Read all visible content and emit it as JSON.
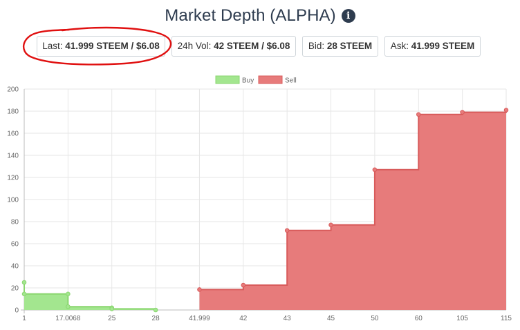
{
  "header": {
    "title": "Market Depth (ALPHA)",
    "info_glyph": "i"
  },
  "stats": {
    "last_label": "Last: ",
    "last_value": "41.999 STEEM / $6.08",
    "vol_label": "24h Vol: ",
    "vol_value": "42 STEEM / $6.08",
    "bid_label": "Bid: ",
    "bid_value": "28 STEEM",
    "ask_label": "Ask: ",
    "ask_value": "41.999 STEEM"
  },
  "annotation": {
    "highlight_color": "#e01010"
  },
  "chart_data": {
    "type": "area",
    "categories": [
      "1",
      "17.0068",
      "25",
      "28",
      "41.999",
      "42",
      "43",
      "45",
      "50",
      "60",
      "105",
      "115"
    ],
    "ylim": [
      0,
      200
    ],
    "yticks": [
      0,
      20,
      40,
      60,
      80,
      100,
      120,
      140,
      160,
      180,
      200
    ],
    "grid": true,
    "legend_position": "top",
    "stepped": true,
    "series": [
      {
        "name": "Buy",
        "color": "#a3e68f",
        "stroke": "#8ad66f",
        "points": [
          {
            "x": "1",
            "y": 25
          },
          {
            "x": "1",
            "y": 14.5
          },
          {
            "x": "17.0068",
            "y": 14.5
          },
          {
            "x": "17.0068",
            "y": 3
          },
          {
            "x": "25",
            "y": 2
          },
          {
            "x": "25",
            "y": 1
          },
          {
            "x": "28",
            "y": 0
          }
        ],
        "fill_start": "1",
        "fill_end": "28"
      },
      {
        "name": "Sell",
        "color": "#e77b7b",
        "stroke": "#d85b5b",
        "points": [
          {
            "x": "41.999",
            "y": 18.5
          },
          {
            "x": "42",
            "y": 22.5
          },
          {
            "x": "43",
            "y": 72
          },
          {
            "x": "45",
            "y": 77
          },
          {
            "x": "50",
            "y": 127
          },
          {
            "x": "60",
            "y": 177
          },
          {
            "x": "105",
            "y": 179
          },
          {
            "x": "115",
            "y": 181
          }
        ],
        "fill_start": "41.999",
        "fill_end": "115"
      }
    ]
  }
}
